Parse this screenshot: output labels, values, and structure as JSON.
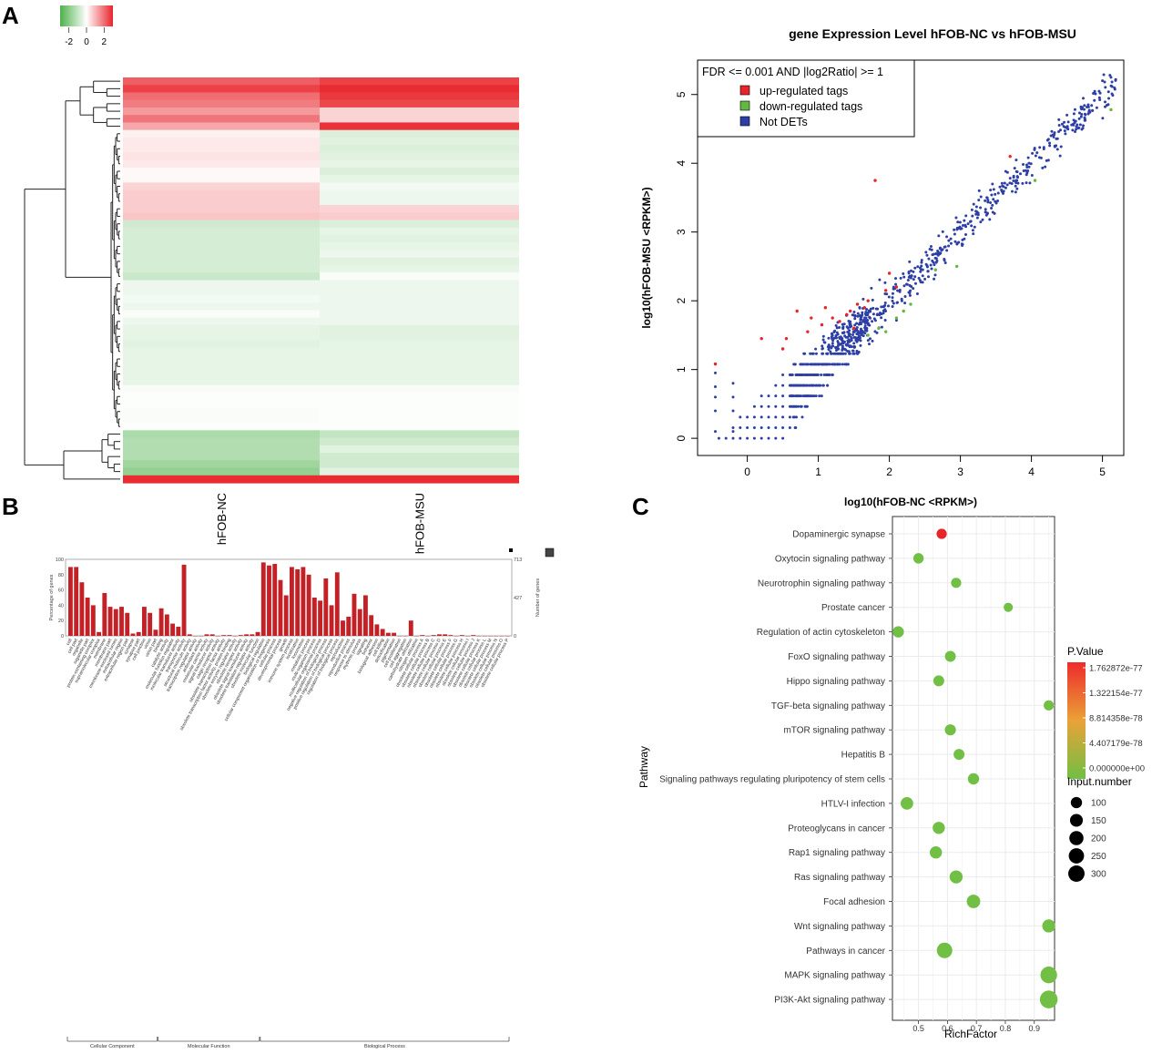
{
  "panel_labels": {
    "a": "A",
    "b": "B",
    "c": "C"
  },
  "colors": {
    "red": "#e8242b",
    "green": "#63b840",
    "blue": "#2d3fa4",
    "bar": "#c42127",
    "grid": "#ebebeb",
    "text": "#111111"
  },
  "chart_data": [
    {
      "type": "heatmap",
      "panel": "A",
      "legend": {
        "ticks": [
          "-2",
          "0",
          "2"
        ],
        "min": -3,
        "max": 3
      },
      "columns": [
        "hFOB-NC",
        "hFOB-MSU"
      ],
      "rows": [
        [
          2.2,
          2.6
        ],
        [
          2.6,
          2.9
        ],
        [
          2.0,
          2.7
        ],
        [
          1.8,
          2.5
        ],
        [
          1.4,
          0.6
        ],
        [
          1.9,
          0.6
        ],
        [
          1.2,
          2.8
        ],
        [
          0.2,
          -0.6
        ],
        [
          0.3,
          -0.5
        ],
        [
          0.3,
          -0.6
        ],
        [
          0.4,
          -0.5
        ],
        [
          0.3,
          -0.4
        ],
        [
          0.1,
          -0.6
        ],
        [
          0.1,
          -0.4
        ],
        [
          0.6,
          -0.2
        ],
        [
          0.7,
          -0.3
        ],
        [
          0.7,
          -0.3
        ],
        [
          0.7,
          0.6
        ],
        [
          0.8,
          0.7
        ],
        [
          -0.8,
          -0.6
        ],
        [
          -0.7,
          -0.4
        ],
        [
          -0.7,
          -0.5
        ],
        [
          -0.7,
          -0.4
        ],
        [
          -0.7,
          -0.3
        ],
        [
          -0.7,
          -0.5
        ],
        [
          -0.7,
          -0.4
        ],
        [
          -0.9,
          -0.1
        ],
        [
          -0.3,
          -0.3
        ],
        [
          -0.3,
          -0.3
        ],
        [
          -0.2,
          -0.3
        ],
        [
          -0.3,
          -0.3
        ],
        [
          -0.1,
          -0.3
        ],
        [
          -0.3,
          -0.3
        ],
        [
          -0.4,
          -0.5
        ],
        [
          -0.4,
          -0.5
        ],
        [
          -0.5,
          -0.4
        ],
        [
          -0.4,
          -0.4
        ],
        [
          -0.4,
          -0.4
        ],
        [
          -0.4,
          -0.4
        ],
        [
          -0.4,
          -0.4
        ],
        [
          -0.4,
          -0.4
        ],
        [
          -0.1,
          -0.1
        ],
        [
          -0.05,
          -0.05
        ],
        [
          -0.05,
          -0.05
        ],
        [
          -0.1,
          -0.05
        ],
        [
          -0.1,
          -0.05
        ],
        [
          -0.05,
          -0.05
        ],
        [
          -1.4,
          -1.0
        ],
        [
          -1.3,
          -0.8
        ],
        [
          -1.3,
          -0.5
        ],
        [
          -1.3,
          -0.8
        ],
        [
          -1.6,
          -0.8
        ],
        [
          -1.8,
          -0.5
        ],
        [
          2.9,
          2.9
        ]
      ]
    },
    {
      "type": "scatter",
      "panel": "A",
      "title": "gene Expression Level hFOB-NC vs hFOB-MSU",
      "xlabel": "log10(hFOB-NC <RPKM>)",
      "ylabel": "log10(hFOB-MSU <RPKM>)",
      "xlim": [
        -0.7,
        5.3
      ],
      "ylim": [
        -0.25,
        5.5
      ],
      "xticks": [
        0,
        1,
        2,
        3,
        4,
        5
      ],
      "yticks": [
        0,
        1,
        2,
        3,
        4,
        5
      ],
      "legend_title": "FDR <=  0.001  AND |log2Ratio| >=  1",
      "legend": [
        "up-regulated tags",
        "down-regulated tags",
        "Not DETs"
      ],
      "up_points": [
        [
          -0.45,
          1.08
        ],
        [
          0.2,
          1.45
        ],
        [
          0.55,
          1.45
        ],
        [
          0.7,
          1.85
        ],
        [
          0.9,
          1.75
        ],
        [
          1.1,
          1.9
        ],
        [
          1.2,
          1.75
        ],
        [
          1.3,
          1.7
        ],
        [
          1.4,
          1.8
        ],
        [
          1.5,
          1.6
        ],
        [
          1.55,
          1.95
        ],
        [
          1.65,
          1.9
        ],
        [
          1.7,
          2.0
        ],
        [
          1.8,
          3.75
        ],
        [
          2.0,
          2.4
        ],
        [
          2.1,
          2.2
        ],
        [
          3.7,
          4.1
        ],
        [
          0.5,
          1.3
        ],
        [
          1.05,
          1.65
        ],
        [
          1.45,
          1.85
        ],
        [
          1.95,
          2.15
        ],
        [
          0.85,
          1.55
        ]
      ],
      "down_points": [
        [
          5.12,
          4.78
        ],
        [
          4.05,
          3.75
        ],
        [
          2.95,
          2.5
        ],
        [
          2.65,
          2.45
        ],
        [
          2.3,
          1.95
        ],
        [
          2.1,
          1.75
        ],
        [
          1.85,
          1.6
        ],
        [
          1.7,
          1.5
        ],
        [
          2.2,
          1.85
        ],
        [
          1.95,
          1.55
        ]
      ],
      "seed_count": 1300
    },
    {
      "type": "bar",
      "panel": "B",
      "left_axis": {
        "title": "Percentage of genes",
        "ticks": [
          "100",
          "80",
          "60",
          "40",
          "20",
          "0"
        ]
      },
      "right_axis": {
        "title": "Number of genes",
        "ticks": [
          "713",
          "427",
          "0"
        ]
      },
      "groups": [
        {
          "name": "Cellular Component",
          "categories": [
            "cell",
            "cell part",
            "organelle",
            "organelle part",
            "protein-containing complex",
            "supramolecular complex",
            "membrane",
            "membrane part",
            "membrane-enclosed lumen",
            "extracellular region",
            "extracellular region part",
            "synapse",
            "synapse part",
            "cell junction",
            "virion",
            "virion part"
          ],
          "values": [
            90,
            90,
            70,
            50,
            40,
            5,
            56,
            38,
            35,
            38,
            30,
            3,
            5,
            38,
            30,
            8
          ]
        },
        {
          "name": "Molecular Function",
          "categories": [
            "binding",
            "catalytic activity",
            "molecular function regulator",
            "molecular transducer activity",
            "transporter activity",
            "structural molecule activity",
            "transcription regulator activity",
            "antioxidant activity",
            "molecular carrier activity",
            "signal transducer activity",
            "cargo receptor activity",
            "obsolete transcription factor activity",
            "obsolete transcription factor activity, protein binding",
            "obsolete enzyme regulator activity",
            "obsolete receptor activity",
            "obsolete signal transducer activity",
            "obsolete translation regulator activity",
            "obsolete molecular function"
          ],
          "values": [
            36,
            28,
            16,
            12,
            93,
            2,
            0,
            0,
            2,
            2,
            0,
            1,
            1,
            0,
            1,
            2,
            2,
            5
          ]
        },
        {
          "name": "Biological Process",
          "categories": [
            "biological regulation",
            "cellular component organization or biogenesis",
            "cellular process",
            "developmental process",
            "growth",
            "immune system process",
            "localization",
            "locomotion",
            "metabolic process",
            "multi-organism process",
            "multicellular organismal process",
            "negative regulation of biological process",
            "positive regulation of biological process",
            "regulation of biological process",
            "reproduction",
            "reproductive process",
            "response to stimulus",
            "rhythmic process",
            "signaling",
            "behavior",
            "biological adhesion",
            "cell killing",
            "detoxification",
            "pigmentation",
            "cell proliferation",
            "cell aggregation",
            "carbohydrate utilization",
            "nitrogen utilization",
            "obsolete cellular process A",
            "obsolete cellular process B",
            "obsolete cellular process C",
            "obsolete cellular process D",
            "obsolete cellular process E",
            "obsolete cellular process F",
            "obsolete cellular process G",
            "obsolete cellular process H",
            "obsolete cellular process I",
            "obsolete cellular process J",
            "obsolete cellular process K",
            "obsolete cellular process L",
            "obsolete cellular process M",
            "obsolete cellular process N",
            "obsolete cellular process O",
            "obsolete cellular process P"
          ],
          "values": [
            96,
            92,
            94,
            73,
            53,
            90,
            87,
            90,
            80,
            50,
            46,
            75,
            40,
            83,
            20,
            25,
            55,
            35,
            53,
            27,
            15,
            9,
            4,
            4,
            0,
            0,
            20,
            0,
            1,
            0,
            1,
            2,
            2,
            1,
            0,
            1,
            0,
            1,
            0,
            0,
            0,
            0,
            0,
            0
          ]
        }
      ]
    },
    {
      "type": "scatter",
      "panel": "C",
      "xlabel": "RichFactor",
      "ylabel": "Pathway",
      "xlim": [
        0.41,
        0.97
      ],
      "xticks": [
        "0.5",
        "0.6",
        "0.7",
        "0.8",
        "0.9"
      ],
      "color_legend": {
        "title": "P.Value",
        "ticks": [
          "1.762872e-77",
          "1.322154e-77",
          "8.814358e-78",
          "4.407179e-78",
          "0.000000e+00"
        ]
      },
      "size_legend": {
        "title": "Input.number",
        "ticks": [
          "100",
          "150",
          "200",
          "250",
          "300"
        ]
      },
      "points": [
        {
          "pathway": "Dopaminergic synapse",
          "rich_factor": 0.58,
          "input_number": 60,
          "p_value": 1.76e-77
        },
        {
          "pathway": "Oxytocin signaling pathway",
          "rich_factor": 0.5,
          "input_number": 65,
          "p_value": 0
        },
        {
          "pathway": "Neurotrophin signaling pathway",
          "rich_factor": 0.63,
          "input_number": 60,
          "p_value": 0
        },
        {
          "pathway": "Prostate cancer",
          "rich_factor": 0.81,
          "input_number": 40,
          "p_value": 0
        },
        {
          "pathway": "Regulation of actin cytoskeleton",
          "rich_factor": 0.43,
          "input_number": 85,
          "p_value": 0
        },
        {
          "pathway": "FoxO signaling pathway",
          "rich_factor": 0.61,
          "input_number": 75,
          "p_value": 0
        },
        {
          "pathway": "Hippo signaling pathway",
          "rich_factor": 0.57,
          "input_number": 75,
          "p_value": 0
        },
        {
          "pathway": "TGF-beta signaling pathway",
          "rich_factor": 0.95,
          "input_number": 60,
          "p_value": 0
        },
        {
          "pathway": "mTOR signaling pathway",
          "rich_factor": 0.61,
          "input_number": 80,
          "p_value": 0
        },
        {
          "pathway": "Hepatitis B",
          "rich_factor": 0.64,
          "input_number": 75,
          "p_value": 0
        },
        {
          "pathway": "Signaling pathways regulating pluripotency of stem cells",
          "rich_factor": 0.69,
          "input_number": 85,
          "p_value": 0
        },
        {
          "pathway": "HTLV-I infection",
          "rich_factor": 0.46,
          "input_number": 120,
          "p_value": 0
        },
        {
          "pathway": "Proteoglycans in cancer",
          "rich_factor": 0.57,
          "input_number": 110,
          "p_value": 0
        },
        {
          "pathway": "Rap1 signaling pathway",
          "rich_factor": 0.56,
          "input_number": 110,
          "p_value": 0
        },
        {
          "pathway": "Ras signaling pathway",
          "rich_factor": 0.63,
          "input_number": 135,
          "p_value": 0
        },
        {
          "pathway": "Focal adhesion",
          "rich_factor": 0.69,
          "input_number": 150,
          "p_value": 0
        },
        {
          "pathway": "Wnt signaling pathway",
          "rich_factor": 0.95,
          "input_number": 135,
          "p_value": 0
        },
        {
          "pathway": "Pathways in cancer",
          "rich_factor": 0.59,
          "input_number": 225,
          "p_value": 0
        },
        {
          "pathway": "MAPK signaling pathway",
          "rich_factor": 0.95,
          "input_number": 275,
          "p_value": 0
        },
        {
          "pathway": "PI3K-Akt signaling pathway",
          "rich_factor": 0.95,
          "input_number": 325,
          "p_value": 0
        }
      ]
    }
  ]
}
